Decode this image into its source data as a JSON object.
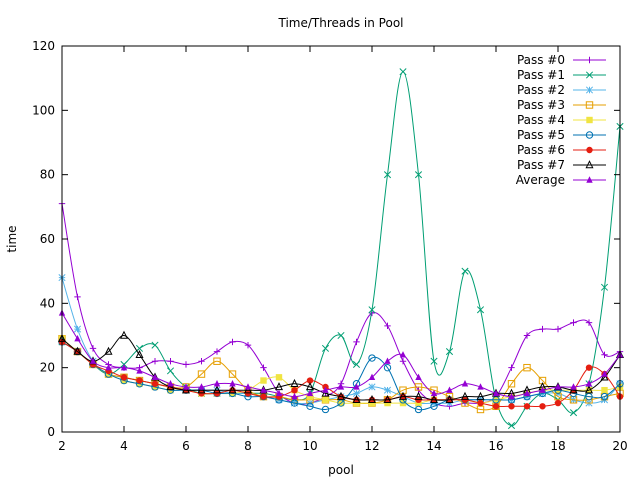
{
  "chart_data": {
    "type": "line",
    "title": "Time/Threads in Pool",
    "xlabel": "pool",
    "ylabel": "time",
    "xlim": [
      2,
      20
    ],
    "ylim": [
      0,
      120
    ],
    "xticks": [
      2,
      4,
      6,
      8,
      10,
      12,
      14,
      16,
      18,
      20
    ],
    "yticks": [
      0,
      20,
      40,
      60,
      80,
      100,
      120
    ],
    "grid": false,
    "legend_position": "top-right",
    "series": [
      {
        "name": "Pass #0",
        "color": "#9400d3",
        "marker": "plus",
        "x": [
          2,
          2.5,
          3,
          3.5,
          4,
          4.5,
          5,
          5.5,
          6,
          6.5,
          7,
          7.5,
          8,
          8.5,
          9,
          9.5,
          10,
          10.5,
          11,
          11.5,
          12,
          12.5,
          13,
          13.5,
          14,
          14.5,
          15,
          15.5,
          16,
          16.5,
          17,
          17.5,
          18,
          18.5,
          19,
          19.5,
          20
        ],
        "values": [
          71,
          42,
          26,
          21,
          20,
          20,
          22,
          22,
          21,
          22,
          25,
          28,
          27,
          20,
          12,
          9,
          9,
          11,
          15,
          28,
          37,
          33,
          22,
          13,
          9,
          8,
          9,
          9,
          11,
          20,
          30,
          32,
          32,
          34,
          34,
          24,
          25
        ]
      },
      {
        "name": "Pass #1",
        "color": "#009e73",
        "marker": "cross",
        "x": [
          2,
          2.5,
          3,
          3.5,
          4,
          4.5,
          5,
          5.5,
          6,
          6.5,
          7,
          7.5,
          8,
          8.5,
          9,
          9.5,
          10,
          10.5,
          11,
          11.5,
          12,
          12.5,
          13,
          13.5,
          14,
          14.5,
          15,
          15.5,
          16,
          16.5,
          17,
          17.5,
          18,
          18.5,
          19,
          19.5,
          20
        ],
        "values": [
          28,
          25,
          21,
          18,
          21,
          26,
          27,
          19,
          14,
          12,
          12,
          12,
          12,
          12,
          11,
          10,
          12,
          26,
          30,
          21,
          38,
          80,
          112,
          80,
          22,
          25,
          50,
          38,
          10,
          2,
          8,
          12,
          10,
          6,
          15,
          45,
          95
        ]
      },
      {
        "name": "Pass #2",
        "color": "#56b4e9",
        "marker": "star",
        "x": [
          2,
          2.5,
          3,
          3.5,
          4,
          4.5,
          5,
          5.5,
          6,
          6.5,
          7,
          7.5,
          8,
          8.5,
          9,
          9.5,
          10,
          10.5,
          11,
          11.5,
          12,
          12.5,
          13,
          13.5,
          14,
          14.5,
          15,
          15.5,
          16,
          16.5,
          17,
          17.5,
          18,
          18.5,
          19,
          19.5,
          20
        ],
        "values": [
          48,
          32,
          22,
          18,
          17,
          16,
          15,
          14,
          13,
          13,
          13,
          12,
          12,
          11,
          10,
          9,
          9,
          10,
          11,
          12,
          14,
          13,
          11,
          9,
          9,
          9,
          10,
          10,
          10,
          10,
          11,
          12,
          12,
          10,
          9,
          10,
          15
        ]
      },
      {
        "name": "Pass #3",
        "color": "#e69f00",
        "marker": "square",
        "x": [
          2,
          2.5,
          3,
          3.5,
          4,
          4.5,
          5,
          5.5,
          6,
          6.5,
          7,
          7.5,
          8,
          8.5,
          9,
          9.5,
          10,
          10.5,
          11,
          11.5,
          12,
          12.5,
          13,
          13.5,
          14,
          14.5,
          15,
          15.5,
          16,
          16.5,
          17,
          17.5,
          18,
          18.5,
          19,
          19.5,
          20
        ],
        "values": [
          29,
          25,
          21,
          18,
          17,
          16,
          15,
          14,
          14,
          18,
          22,
          18,
          13,
          11,
          11,
          10,
          10,
          10,
          10,
          9,
          9,
          10,
          13,
          14,
          13,
          11,
          9,
          7,
          8,
          15,
          20,
          16,
          11,
          10,
          10,
          11,
          12
        ]
      },
      {
        "name": "Pass #4",
        "color": "#f0e442",
        "marker": "square-filled",
        "x": [
          2,
          2.5,
          3,
          3.5,
          4,
          4.5,
          5,
          5.5,
          6,
          6.5,
          7,
          7.5,
          8,
          8.5,
          9,
          9.5,
          10,
          10.5,
          11,
          11.5,
          12,
          12.5,
          13,
          13.5,
          14,
          14.5,
          15,
          15.5,
          16,
          16.5,
          17,
          17.5,
          18,
          18.5,
          19,
          19.5,
          20
        ],
        "values": [
          29,
          25,
          21,
          18,
          16,
          15,
          14,
          13,
          13,
          12,
          12,
          12,
          13,
          16,
          17,
          13,
          11,
          10,
          9,
          9,
          9,
          9,
          9,
          9,
          10,
          10,
          10,
          9,
          10,
          11,
          12,
          13,
          13,
          13,
          13,
          13,
          14
        ]
      },
      {
        "name": "Pass #5",
        "color": "#0072b2",
        "marker": "circle",
        "x": [
          2,
          2.5,
          3,
          3.5,
          4,
          4.5,
          5,
          5.5,
          6,
          6.5,
          7,
          7.5,
          8,
          8.5,
          9,
          9.5,
          10,
          10.5,
          11,
          11.5,
          12,
          12.5,
          13,
          13.5,
          14,
          14.5,
          15,
          15.5,
          16,
          16.5,
          17,
          17.5,
          18,
          18.5,
          19,
          19.5,
          20
        ],
        "values": [
          28,
          25,
          21,
          18,
          16,
          15,
          14,
          13,
          13,
          13,
          12,
          12,
          11,
          11,
          10,
          9,
          8,
          7,
          9,
          15,
          23,
          20,
          10,
          7,
          8,
          10,
          10,
          10,
          10,
          10,
          11,
          12,
          13,
          12,
          11,
          11,
          15
        ]
      },
      {
        "name": "Pass #6",
        "color": "#e51e10",
        "marker": "circle-filled",
        "x": [
          2,
          2.5,
          3,
          3.5,
          4,
          4.5,
          5,
          5.5,
          6,
          6.5,
          7,
          7.5,
          8,
          8.5,
          9,
          9.5,
          10,
          10.5,
          11,
          11.5,
          12,
          12.5,
          13,
          13.5,
          14,
          14.5,
          15,
          15.5,
          16,
          16.5,
          17,
          17.5,
          18,
          18.5,
          19,
          19.5,
          20
        ],
        "values": [
          28,
          25,
          21,
          19,
          17,
          16,
          15,
          14,
          13,
          12,
          12,
          13,
          12,
          11,
          11,
          13,
          16,
          14,
          11,
          10,
          10,
          10,
          11,
          10,
          10,
          10,
          10,
          9,
          8,
          8,
          8,
          8,
          9,
          13,
          20,
          18,
          11
        ]
      },
      {
        "name": "Pass #7",
        "color": "#000000",
        "marker": "triangle",
        "x": [
          2,
          2.5,
          3,
          3.5,
          4,
          4.5,
          5,
          5.5,
          6,
          6.5,
          7,
          7.5,
          8,
          8.5,
          9,
          9.5,
          10,
          10.5,
          11,
          11.5,
          12,
          12.5,
          13,
          13.5,
          14,
          14.5,
          15,
          15.5,
          16,
          16.5,
          17,
          17.5,
          18,
          18.5,
          19,
          19.5,
          20
        ],
        "values": [
          29,
          25,
          22,
          25,
          30,
          24,
          17,
          14,
          13,
          13,
          13,
          13,
          13,
          13,
          14,
          15,
          14,
          12,
          11,
          10,
          10,
          10,
          11,
          11,
          10,
          10,
          11,
          11,
          12,
          12,
          13,
          14,
          14,
          13,
          13,
          17,
          24
        ]
      },
      {
        "name": "Average",
        "color": "#9400d3",
        "marker": "triangle-filled",
        "x": [
          2,
          2.5,
          3,
          3.5,
          4,
          4.5,
          5,
          5.5,
          6,
          6.5,
          7,
          7.5,
          8,
          8.5,
          9,
          9.5,
          10,
          10.5,
          11,
          11.5,
          12,
          12.5,
          13,
          13.5,
          14,
          14.5,
          15,
          15.5,
          16,
          16.5,
          17,
          17.5,
          18,
          18.5,
          19,
          19.5,
          20
        ],
        "values": [
          37,
          29,
          22,
          20,
          20,
          19,
          17,
          15,
          14,
          14,
          15,
          15,
          14,
          13,
          12,
          11,
          12,
          13,
          14,
          14,
          17,
          22,
          24,
          17,
          12,
          13,
          15,
          14,
          12,
          11,
          12,
          13,
          14,
          14,
          15,
          18,
          24
        ]
      }
    ]
  }
}
